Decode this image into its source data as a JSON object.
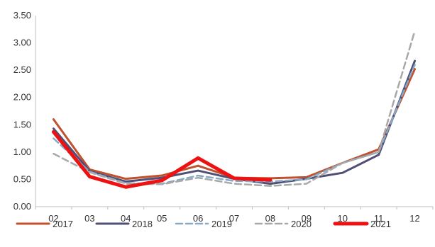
{
  "chart_data": {
    "type": "line",
    "title": "",
    "xlabel": "",
    "ylabel": "",
    "categories": [
      "02",
      "03",
      "04",
      "05",
      "06",
      "07",
      "08",
      "09",
      "10",
      "11",
      "12"
    ],
    "ylim": [
      0,
      3.5
    ],
    "yticks": [
      "0.00",
      "0.50",
      "1.00",
      "1.50",
      "2.00",
      "2.50",
      "3.00",
      "3.50"
    ],
    "grid": false,
    "legend_position": "bottom",
    "series": [
      {
        "name": "2017",
        "color": "#C0502E",
        "style": "solid",
        "values": [
          1.6,
          0.68,
          0.51,
          0.57,
          0.75,
          0.53,
          0.52,
          0.54,
          0.8,
          1.05,
          2.52
        ]
      },
      {
        "name": "2018",
        "color": "#4F4F78",
        "style": "solid",
        "values": [
          1.43,
          0.65,
          0.46,
          0.53,
          0.66,
          0.51,
          0.42,
          0.51,
          0.62,
          0.95,
          2.67
        ]
      },
      {
        "name": "2019",
        "color": "#86A9C6",
        "style": "dashed",
        "values": [
          1.25,
          0.64,
          0.43,
          0.42,
          0.57,
          0.47,
          0.46,
          0.5,
          0.8,
          1.0,
          2.6
        ]
      },
      {
        "name": "2020",
        "color": "#A8A8A8",
        "style": "dashed",
        "values": [
          0.97,
          0.63,
          0.42,
          0.41,
          0.53,
          0.42,
          0.38,
          0.42,
          0.8,
          1.0,
          3.22
        ]
      },
      {
        "name": "2021",
        "color": "#EE1111",
        "style": "solid-thick",
        "values": [
          1.37,
          0.55,
          0.36,
          0.48,
          0.89,
          0.52,
          0.49,
          null,
          null,
          null,
          null
        ]
      }
    ]
  }
}
